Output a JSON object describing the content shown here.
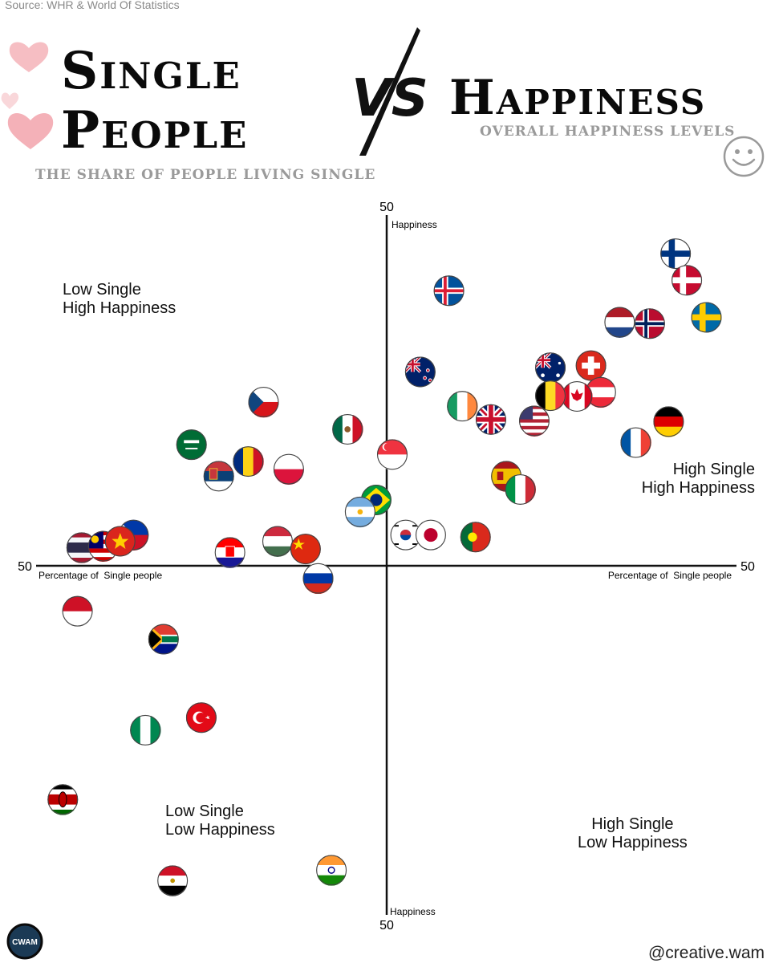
{
  "source": "Source: WHR & World Of Statistics",
  "header": {
    "left_title_line1": "Single",
    "left_title_line2": "People",
    "left_subtitle": "THE SHARE OF PEOPLE LIVING SINGLE",
    "vs_text": "VS",
    "right_title": "Happiness",
    "right_subtitle": "OVERALL HAPPINESS LEVELS"
  },
  "quadrants": {
    "top_left": [
      "Low Single",
      "High Happiness"
    ],
    "top_right": [
      "High Single",
      "High Happiness"
    ],
    "bottom_left": [
      "Low Single",
      "Low Happiness"
    ],
    "bottom_right": [
      "High Single",
      "Low Happiness"
    ]
  },
  "footer": {
    "handle": "@creative.wam",
    "logo_text": "CWAM"
  },
  "colors": {
    "axis": "#111111",
    "subtitle": "#9a9a9a",
    "heart": "#f2a3ab"
  },
  "chart_data": {
    "type": "scatter",
    "title": "",
    "xlabel": "Percentage of  Single people",
    "ylabel": "Happiness",
    "x_min_label": "50",
    "x_max_label": "50",
    "y_max_label": "50",
    "y_min_label": "50",
    "xlim": [
      -50,
      50
    ],
    "ylim": [
      -50,
      50
    ],
    "grid": false,
    "points": [
      {
        "flag": "finland",
        "x": 41.3,
        "y": 44.6
      },
      {
        "flag": "denmark",
        "x": 42.9,
        "y": 40.8
      },
      {
        "flag": "sweden",
        "x": 45.7,
        "y": 35.5
      },
      {
        "flag": "norway",
        "x": 37.6,
        "y": 34.6
      },
      {
        "flag": "netherlands",
        "x": 33.3,
        "y": 34.8
      },
      {
        "flag": "iceland",
        "x": 8.9,
        "y": 39.3
      },
      {
        "flag": "switzerland",
        "x": 29.2,
        "y": 28.6
      },
      {
        "flag": "australia",
        "x": 23.4,
        "y": 28.3
      },
      {
        "flag": "new-zealand",
        "x": 4.8,
        "y": 27.7
      },
      {
        "flag": "austria",
        "x": 30.6,
        "y": 24.8
      },
      {
        "flag": "canada",
        "x": 27.2,
        "y": 24.2
      },
      {
        "flag": "belgium",
        "x": 23.4,
        "y": 24.3
      },
      {
        "flag": "ireland",
        "x": 10.8,
        "y": 22.8
      },
      {
        "flag": "uk",
        "x": 14.9,
        "y": 20.9
      },
      {
        "flag": "usa",
        "x": 21.1,
        "y": 20.7
      },
      {
        "flag": "germany",
        "x": 40.3,
        "y": 20.6
      },
      {
        "flag": "france",
        "x": 35.6,
        "y": 17.6
      },
      {
        "flag": "czechia",
        "x": -17.6,
        "y": 23.4
      },
      {
        "flag": "mexico",
        "x": -5.6,
        "y": 19.5
      },
      {
        "flag": "saudi-arabia",
        "x": -27.9,
        "y": 17.3
      },
      {
        "flag": "romania",
        "x": -19.8,
        "y": 14.9
      },
      {
        "flag": "serbia",
        "x": -24.0,
        "y": 12.8
      },
      {
        "flag": "poland",
        "x": -14.0,
        "y": 13.8
      },
      {
        "flag": "singapore",
        "x": 0.8,
        "y": 15.9
      },
      {
        "flag": "spain",
        "x": 17.1,
        "y": 12.8
      },
      {
        "flag": "italy",
        "x": 19.1,
        "y": 10.9
      },
      {
        "flag": "brazil",
        "x": -1.5,
        "y": 9.4
      },
      {
        "flag": "argentina",
        "x": -3.8,
        "y": 7.7
      },
      {
        "flag": "south-korea",
        "x": 2.7,
        "y": 4.4
      },
      {
        "flag": "japan",
        "x": 6.3,
        "y": 4.4
      },
      {
        "flag": "portugal",
        "x": 12.7,
        "y": 4.1
      },
      {
        "flag": "philippines",
        "x": -36.2,
        "y": 4.4
      },
      {
        "flag": "thailand",
        "x": -43.6,
        "y": 2.6
      },
      {
        "flag": "malaysia",
        "x": -40.5,
        "y": 2.8
      },
      {
        "flag": "vietnam",
        "x": -38.1,
        "y": 3.5
      },
      {
        "flag": "hungary",
        "x": -15.6,
        "y": 3.5
      },
      {
        "flag": "croatia",
        "x": -22.4,
        "y": 1.9
      },
      {
        "flag": "china",
        "x": -11.6,
        "y": 2.4
      },
      {
        "flag": "russia",
        "x": -9.8,
        "y": -1.8
      },
      {
        "flag": "indonesia",
        "x": -44.2,
        "y": -6.5
      },
      {
        "flag": "south-africa",
        "x": -31.9,
        "y": -10.5
      },
      {
        "flag": "turkey",
        "x": -26.5,
        "y": -21.7
      },
      {
        "flag": "nigeria",
        "x": -34.5,
        "y": -23.5
      },
      {
        "flag": "kenya",
        "x": -46.3,
        "y": -33.4
      },
      {
        "flag": "india",
        "x": -7.9,
        "y": -43.5
      },
      {
        "flag": "egypt",
        "x": -30.6,
        "y": -45.0
      }
    ]
  }
}
